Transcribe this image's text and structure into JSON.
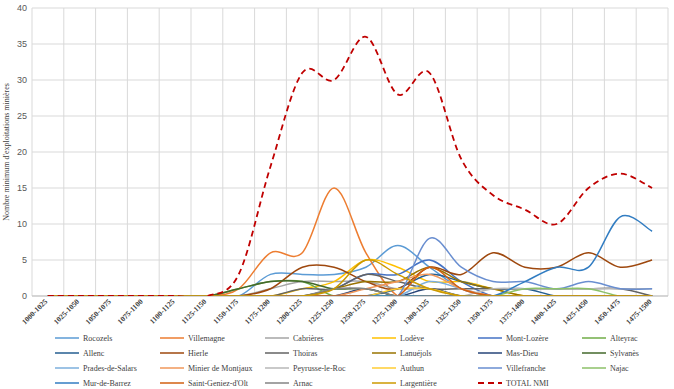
{
  "chart_data": {
    "type": "line",
    "y_label": "Nombre minimum d'exploitations minières",
    "categories": [
      "1000-1025",
      "1025-1050",
      "1050-1075",
      "1075-1100",
      "1100-1125",
      "1125-1150",
      "1150-1175",
      "1175-1200",
      "1200-1225",
      "1225-1250",
      "1250-1275",
      "1275-1300",
      "1300-1325",
      "1325-1350",
      "1350-1375",
      "1375-1400",
      "1400-1425",
      "1425-1450",
      "1450-1475",
      "1475-1500"
    ],
    "ylim": [
      0,
      40
    ],
    "yticks": [
      0,
      5,
      10,
      15,
      20,
      25,
      30,
      35,
      40
    ],
    "grid": true,
    "legend": "bottom",
    "series": [
      {
        "name": "Rocozels",
        "color": "#5b9bd5",
        "values": [
          0,
          0,
          0,
          0,
          0,
          0,
          0,
          3,
          3,
          3,
          4,
          7,
          4,
          1,
          0,
          0,
          0,
          0,
          0,
          0
        ]
      },
      {
        "name": "Villemagne",
        "color": "#ed7d31",
        "values": [
          0,
          0,
          0,
          0,
          0,
          0,
          1,
          6,
          6,
          15,
          6,
          0,
          0,
          0,
          0,
          0,
          0,
          0,
          0,
          0
        ]
      },
      {
        "name": "Cabrières",
        "color": "#a5a5a5",
        "values": [
          0,
          0,
          0,
          0,
          0,
          0,
          0,
          1,
          2,
          2,
          2,
          1,
          1,
          0,
          0,
          0,
          0,
          0,
          0,
          0
        ]
      },
      {
        "name": "Lodève",
        "color": "#ffc000",
        "values": [
          0,
          0,
          0,
          0,
          0,
          0,
          0,
          0,
          1,
          2,
          5,
          4,
          2,
          2,
          1,
          0,
          0,
          0,
          0,
          0
        ]
      },
      {
        "name": "Mont-Lozère",
        "color": "#4472c4",
        "values": [
          0,
          0,
          0,
          0,
          0,
          0,
          0,
          0,
          0,
          1,
          3,
          3,
          5,
          2,
          0,
          0,
          0,
          0,
          0,
          0
        ]
      },
      {
        "name": "Alteyrac",
        "color": "#70ad47",
        "values": [
          0,
          0,
          0,
          0,
          0,
          0,
          1,
          2,
          2,
          0,
          0,
          0,
          0,
          0,
          0,
          0,
          0,
          0,
          0,
          0
        ]
      },
      {
        "name": "Allenc",
        "color": "#255e91",
        "values": [
          0,
          0,
          0,
          0,
          0,
          0,
          0,
          0,
          0,
          0,
          0,
          1,
          3,
          2,
          1,
          1,
          0,
          0,
          0,
          0
        ]
      },
      {
        "name": "Hierle",
        "color": "#9e480e",
        "values": [
          0,
          0,
          0,
          0,
          0,
          0,
          0,
          1,
          4,
          4,
          2,
          1,
          4,
          3,
          6,
          4,
          4,
          6,
          4,
          5
        ]
      },
      {
        "name": "Thoiras",
        "color": "#636363",
        "values": [
          0,
          0,
          0,
          0,
          0,
          0,
          0,
          0,
          1,
          1,
          3,
          2,
          1,
          1,
          1,
          1,
          1,
          1,
          1,
          0
        ]
      },
      {
        "name": "Lanuéjols",
        "color": "#997300",
        "values": [
          0,
          0,
          0,
          0,
          0,
          0,
          0,
          0,
          0,
          1,
          2,
          2,
          4,
          2,
          1,
          0,
          0,
          0,
          0,
          0
        ]
      },
      {
        "name": "Mas-Dieu",
        "color": "#264478",
        "values": [
          0,
          0,
          0,
          0,
          0,
          0,
          0,
          0,
          0,
          0,
          1,
          0,
          1,
          0,
          0,
          0,
          0,
          0,
          0,
          0
        ]
      },
      {
        "name": "Sylvanès",
        "color": "#43682b",
        "values": [
          0,
          0,
          0,
          0,
          0,
          0,
          1,
          2,
          2,
          1,
          1,
          0,
          0,
          0,
          0,
          0,
          0,
          0,
          0,
          0
        ]
      },
      {
        "name": "Prades-de-Salars",
        "color": "#7cafdd",
        "values": [
          0,
          0,
          0,
          0,
          0,
          0,
          0,
          0,
          0,
          0,
          0,
          0,
          2,
          1,
          0,
          0,
          0,
          0,
          0,
          0
        ]
      },
      {
        "name": "Minier de Montjaux",
        "color": "#f1975a",
        "values": [
          0,
          0,
          0,
          0,
          0,
          0,
          0,
          0,
          0,
          0,
          1,
          2,
          3,
          1,
          0,
          0,
          0,
          0,
          0,
          0
        ]
      },
      {
        "name": "Peyrusse-le-Roc",
        "color": "#b7b7b7",
        "values": [
          0,
          0,
          0,
          0,
          0,
          0,
          0,
          0,
          0,
          0,
          0,
          0,
          0,
          0,
          1,
          1,
          1,
          1,
          1,
          1
        ]
      },
      {
        "name": "Authun",
        "color": "#ffcd33",
        "values": [
          0,
          0,
          0,
          0,
          0,
          0,
          0,
          0,
          0,
          0,
          0,
          1,
          1,
          0,
          0,
          0,
          0,
          0,
          0,
          0
        ]
      },
      {
        "name": "Villefranche",
        "color": "#698ed0",
        "values": [
          0,
          0,
          0,
          0,
          0,
          0,
          0,
          0,
          0,
          0,
          0,
          0,
          8,
          4,
          2,
          2,
          1,
          2,
          1,
          1
        ]
      },
      {
        "name": "Najac",
        "color": "#8cc168",
        "values": [
          0,
          0,
          0,
          0,
          0,
          0,
          0,
          0,
          0,
          0,
          0,
          0,
          0,
          0,
          0,
          1,
          1,
          1,
          0,
          0
        ]
      },
      {
        "name": "Mur-de-Barrez",
        "color": "#327dc2",
        "values": [
          0,
          0,
          0,
          0,
          0,
          0,
          0,
          0,
          0,
          0,
          0,
          0,
          0,
          0,
          0,
          2,
          4,
          4,
          11,
          9
        ]
      },
      {
        "name": "Saint-Geniez-d'Olt",
        "color": "#d26012",
        "values": [
          0,
          0,
          0,
          0,
          0,
          0,
          0,
          0,
          0,
          0,
          0,
          0,
          4,
          1,
          0,
          0,
          0,
          0,
          0,
          0
        ]
      },
      {
        "name": "Arnac",
        "color": "#848484",
        "values": [
          0,
          0,
          0,
          0,
          0,
          0,
          0,
          0,
          0,
          1,
          1,
          0,
          0,
          0,
          0,
          0,
          0,
          0,
          0,
          0
        ]
      },
      {
        "name": "Largentière",
        "color": "#cc9a00",
        "values": [
          0,
          0,
          0,
          0,
          0,
          0,
          0,
          0,
          0,
          1,
          5,
          3,
          1,
          0,
          0,
          0,
          0,
          0,
          0,
          0
        ]
      },
      {
        "name": "TOTAL NMI",
        "color": "#c00000",
        "line_style": "dashed",
        "values": [
          0,
          0,
          0,
          0,
          0,
          0,
          3,
          18,
          31,
          30,
          36,
          28,
          31,
          19,
          14,
          12,
          10,
          15,
          17,
          15
        ]
      }
    ]
  }
}
